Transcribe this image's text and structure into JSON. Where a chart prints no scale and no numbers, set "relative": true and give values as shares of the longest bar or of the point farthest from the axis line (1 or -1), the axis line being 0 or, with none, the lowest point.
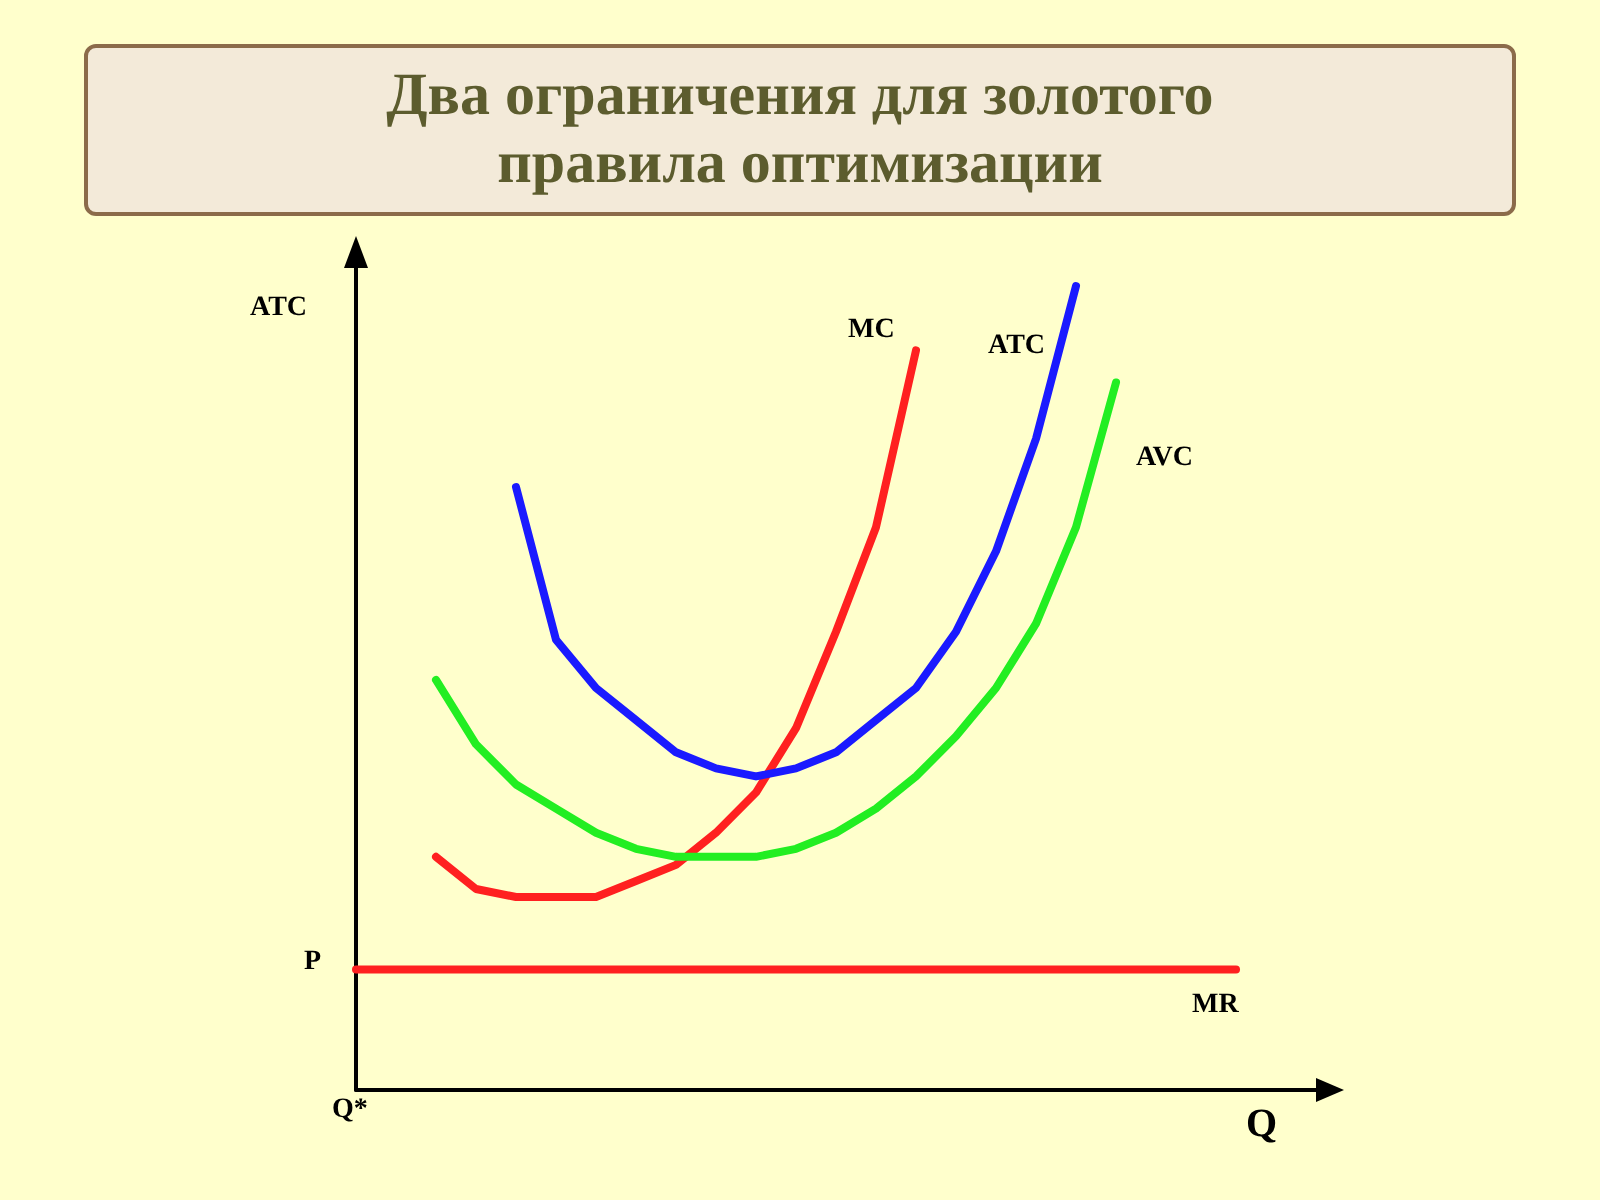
{
  "chart_data": {
    "type": "line",
    "title": "Два ограничения для золотого правила оптимизации",
    "ylabel": "ATC",
    "xlabel": "Q",
    "relative": true,
    "grid": false,
    "legend": false,
    "marker": "none",
    "line_style": "solid",
    "annotations": [
      "P",
      "Q*"
    ],
    "categories": [
      null,
      null,
      null,
      null,
      null,
      null,
      null,
      null,
      null,
      null,
      null,
      null,
      null,
      null,
      null,
      null,
      null,
      null,
      null,
      null,
      null,
      null,
      null,
      null,
      null
    ],
    "series": [
      {
        "name": "MC",
        "color": "#ff2020",
        "values": [
          null,
          null,
          0.29,
          0.25,
          0.24,
          0.24,
          0.24,
          0.26,
          0.28,
          0.32,
          0.37,
          0.45,
          0.57,
          0.7,
          0.92,
          null,
          null,
          null,
          null,
          null,
          null,
          null,
          null,
          null,
          null
        ]
      },
      {
        "name": "ATC",
        "color": "#1a1aff",
        "values": [
          null,
          null,
          null,
          null,
          0.75,
          0.56,
          0.5,
          0.46,
          0.42,
          0.4,
          0.39,
          0.4,
          0.42,
          0.46,
          0.5,
          0.57,
          0.67,
          0.81,
          1.0,
          null,
          null,
          null,
          null,
          null,
          null
        ]
      },
      {
        "name": "AVC",
        "color": "#22ee22",
        "values": [
          null,
          null,
          0.51,
          0.43,
          0.38,
          0.35,
          0.32,
          0.3,
          0.29,
          0.29,
          0.29,
          0.3,
          0.32,
          0.35,
          0.39,
          0.44,
          0.5,
          0.58,
          0.7,
          0.88,
          null,
          null,
          null,
          null,
          null
        ]
      },
      {
        "name": "MR",
        "color": "#ff2020",
        "values": [
          0.15,
          0.15,
          0.15,
          0.15,
          0.15,
          0.15,
          0.15,
          0.15,
          0.15,
          0.15,
          0.15,
          0.15,
          0.15,
          0.15,
          0.15,
          0.15,
          0.15,
          0.15,
          0.15,
          0.15,
          0.15,
          0.15,
          0.15,
          null,
          null
        ]
      }
    ]
  }
}
